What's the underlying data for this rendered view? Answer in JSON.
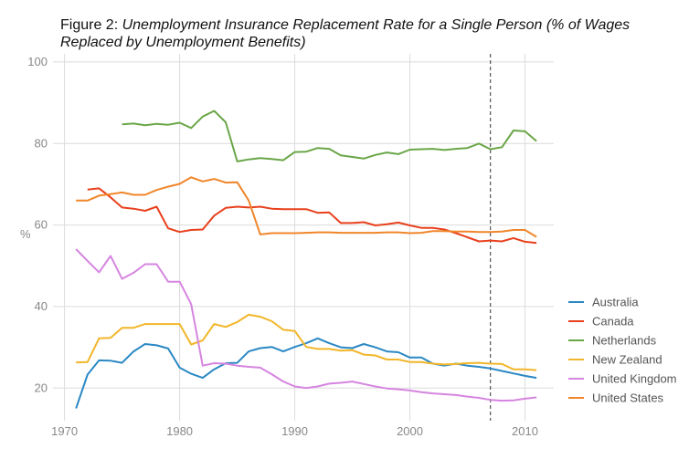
{
  "title": {
    "prefix": "Figure 2: ",
    "main": "Unemployment Insurance Replacement Rate for a Single Person (% of Wages Replaced by Unemployment Benefits)"
  },
  "chart_data": {
    "type": "line",
    "title": "Figure 2: Unemployment Insurance Replacement Rate for a Single Person (% of Wages Replaced by Unemployment Benefits)",
    "xlabel": "",
    "ylabel": "%",
    "xlim": [
      1969,
      2012.5
    ],
    "ylim": [
      12,
      102
    ],
    "xticks": [
      1970,
      1980,
      1990,
      2000,
      2010
    ],
    "yticks": [
      20,
      40,
      60,
      80,
      100
    ],
    "grid": true,
    "legend_position": "bottom-right",
    "reference_line": {
      "x": 2007,
      "style": "dashed"
    },
    "series": [
      {
        "name": "Australia",
        "color": "#2a88c4",
        "points": [
          [
            1971,
            15
          ],
          [
            1972,
            23.3
          ],
          [
            1973,
            26.8
          ],
          [
            1974,
            26.7
          ],
          [
            1975,
            26.2
          ],
          [
            1976,
            29
          ],
          [
            1977,
            30.8
          ],
          [
            1978,
            30.5
          ],
          [
            1979,
            29.7
          ],
          [
            1980,
            25
          ],
          [
            1981,
            23.5
          ],
          [
            1982,
            22.5
          ],
          [
            1983,
            24.6
          ],
          [
            1984,
            26.1
          ],
          [
            1985,
            26.2
          ],
          [
            1986,
            29
          ],
          [
            1987,
            29.8
          ],
          [
            1988,
            30.1
          ],
          [
            1989,
            29
          ],
          [
            1990,
            30.1
          ],
          [
            1991,
            31
          ],
          [
            1992,
            32.2
          ],
          [
            1993,
            31
          ],
          [
            1994,
            30
          ],
          [
            1995,
            29.8
          ],
          [
            1996,
            30.8
          ],
          [
            1997,
            30
          ],
          [
            1998,
            29
          ],
          [
            1999,
            28.8
          ],
          [
            2000,
            27.5
          ],
          [
            2001,
            27.5
          ],
          [
            2002,
            26
          ],
          [
            2003,
            25.5
          ],
          [
            2004,
            26
          ],
          [
            2005,
            25.5
          ],
          [
            2006,
            25.2
          ],
          [
            2007,
            24.8
          ],
          [
            2008,
            24.2
          ],
          [
            2009,
            23.6
          ],
          [
            2010,
            23
          ],
          [
            2011,
            22.5
          ]
        ]
      },
      {
        "name": "Canada",
        "color": "#e8401c",
        "points": [
          [
            1972,
            68.7
          ],
          [
            1973,
            69
          ],
          [
            1974,
            66.8
          ],
          [
            1975,
            64.3
          ],
          [
            1976,
            64
          ],
          [
            1977,
            63.5
          ],
          [
            1978,
            64.5
          ],
          [
            1979,
            59.2
          ],
          [
            1980,
            58.3
          ],
          [
            1981,
            58.8
          ],
          [
            1982,
            58.9
          ],
          [
            1983,
            62.3
          ],
          [
            1984,
            64.2
          ],
          [
            1985,
            64.5
          ],
          [
            1986,
            64.3
          ],
          [
            1987,
            64.5
          ],
          [
            1988,
            64
          ],
          [
            1989,
            63.9
          ],
          [
            1990,
            63.9
          ],
          [
            1991,
            63.9
          ],
          [
            1992,
            63
          ],
          [
            1993,
            63.1
          ],
          [
            1994,
            60.5
          ],
          [
            1995,
            60.5
          ],
          [
            1996,
            60.7
          ],
          [
            1997,
            59.9
          ],
          [
            1998,
            60.2
          ],
          [
            1999,
            60.6
          ],
          [
            2000,
            59.9
          ],
          [
            2001,
            59.3
          ],
          [
            2002,
            59.3
          ],
          [
            2003,
            58.9
          ],
          [
            2004,
            58
          ],
          [
            2005,
            57
          ],
          [
            2006,
            56
          ],
          [
            2007,
            56.2
          ],
          [
            2008,
            56
          ],
          [
            2009,
            56.8
          ],
          [
            2010,
            55.9
          ],
          [
            2011,
            55.6
          ]
        ]
      },
      {
        "name": "Netherlands",
        "color": "#6aa647",
        "points": [
          [
            1975,
            84.7
          ],
          [
            1976,
            84.9
          ],
          [
            1977,
            84.5
          ],
          [
            1978,
            84.8
          ],
          [
            1979,
            84.6
          ],
          [
            1980,
            85.1
          ],
          [
            1981,
            83.8
          ],
          [
            1982,
            86.6
          ],
          [
            1983,
            88
          ],
          [
            1984,
            85.2
          ],
          [
            1985,
            75.6
          ],
          [
            1986,
            76.1
          ],
          [
            1987,
            76.4
          ],
          [
            1988,
            76.2
          ],
          [
            1989,
            75.9
          ],
          [
            1990,
            77.9
          ],
          [
            1991,
            78
          ],
          [
            1992,
            78.9
          ],
          [
            1993,
            78.7
          ],
          [
            1994,
            77.1
          ],
          [
            1995,
            76.7
          ],
          [
            1996,
            76.3
          ],
          [
            1997,
            77.2
          ],
          [
            1998,
            77.8
          ],
          [
            1999,
            77.4
          ],
          [
            2000,
            78.5
          ],
          [
            2001,
            78.6
          ],
          [
            2002,
            78.7
          ],
          [
            2003,
            78.4
          ],
          [
            2004,
            78.7
          ],
          [
            2005,
            78.9
          ],
          [
            2006,
            80
          ],
          [
            2007,
            78.6
          ],
          [
            2008,
            79.1
          ],
          [
            2009,
            83.2
          ],
          [
            2010,
            83
          ],
          [
            2011,
            80.6
          ]
        ]
      },
      {
        "name": "New Zealand",
        "color": "#f2b62a",
        "points": [
          [
            1971,
            26.3
          ],
          [
            1972,
            26.4
          ],
          [
            1973,
            32.2
          ],
          [
            1974,
            32.3
          ],
          [
            1975,
            34.8
          ],
          [
            1976,
            34.8
          ],
          [
            1977,
            35.7
          ],
          [
            1978,
            35.7
          ],
          [
            1979,
            35.7
          ],
          [
            1980,
            35.7
          ],
          [
            1981,
            30.7
          ],
          [
            1982,
            31.7
          ],
          [
            1983,
            35.7
          ],
          [
            1984,
            35
          ],
          [
            1985,
            36.2
          ],
          [
            1986,
            38
          ],
          [
            1987,
            37.5
          ],
          [
            1988,
            36.4
          ],
          [
            1989,
            34.3
          ],
          [
            1990,
            34
          ],
          [
            1991,
            30.1
          ],
          [
            1992,
            29.6
          ],
          [
            1993,
            29.6
          ],
          [
            1994,
            29.2
          ],
          [
            1995,
            29.3
          ],
          [
            1996,
            28.2
          ],
          [
            1997,
            28
          ],
          [
            1998,
            27
          ],
          [
            1999,
            27
          ],
          [
            2000,
            26.4
          ],
          [
            2001,
            26.4
          ],
          [
            2002,
            26
          ],
          [
            2003,
            25.8
          ],
          [
            2004,
            25.9
          ],
          [
            2005,
            26.1
          ],
          [
            2006,
            26.2
          ],
          [
            2007,
            26
          ],
          [
            2008,
            25.9
          ],
          [
            2009,
            24.6
          ],
          [
            2010,
            24.6
          ],
          [
            2011,
            24.4
          ]
        ]
      },
      {
        "name": "United Kingdom",
        "color": "#d685e0",
        "points": [
          [
            1971,
            54.1
          ],
          [
            1972,
            51.2
          ],
          [
            1973,
            48.4
          ],
          [
            1974,
            52.4
          ],
          [
            1975,
            46.8
          ],
          [
            1976,
            48.3
          ],
          [
            1977,
            50.4
          ],
          [
            1978,
            50.4
          ],
          [
            1979,
            46.1
          ],
          [
            1980,
            46.1
          ],
          [
            1981,
            40.6
          ],
          [
            1982,
            25.5
          ],
          [
            1983,
            26.1
          ],
          [
            1984,
            26
          ],
          [
            1985,
            25.5
          ],
          [
            1986,
            25.2
          ],
          [
            1987,
            25
          ],
          [
            1988,
            23.4
          ],
          [
            1989,
            21.6
          ],
          [
            1990,
            20.4
          ],
          [
            1991,
            20
          ],
          [
            1992,
            20.4
          ],
          [
            1993,
            21.1
          ],
          [
            1994,
            21.3
          ],
          [
            1995,
            21.6
          ],
          [
            1996,
            21
          ],
          [
            1997,
            20.4
          ],
          [
            1998,
            19.9
          ],
          [
            1999,
            19.7
          ],
          [
            2000,
            19.4
          ],
          [
            2001,
            19
          ],
          [
            2002,
            18.7
          ],
          [
            2003,
            18.5
          ],
          [
            2004,
            18.3
          ],
          [
            2005,
            17.9
          ],
          [
            2006,
            17.6
          ],
          [
            2007,
            17.1
          ],
          [
            2008,
            16.9
          ],
          [
            2009,
            17
          ],
          [
            2010,
            17.4
          ],
          [
            2011,
            17.7
          ]
        ]
      },
      {
        "name": "United States",
        "color": "#f0862a",
        "points": [
          [
            1971,
            66
          ],
          [
            1972,
            66
          ],
          [
            1973,
            67.2
          ],
          [
            1974,
            67.6
          ],
          [
            1975,
            68
          ],
          [
            1976,
            67.4
          ],
          [
            1977,
            67.4
          ],
          [
            1978,
            68.6
          ],
          [
            1979,
            69.4
          ],
          [
            1980,
            70.1
          ],
          [
            1981,
            71.7
          ],
          [
            1982,
            70.7
          ],
          [
            1983,
            71.3
          ],
          [
            1984,
            70.4
          ],
          [
            1985,
            70.5
          ],
          [
            1986,
            66
          ],
          [
            1987,
            57.7
          ],
          [
            1988,
            58
          ],
          [
            1989,
            58
          ],
          [
            1990,
            58
          ],
          [
            1991,
            58.1
          ],
          [
            1992,
            58.2
          ],
          [
            1993,
            58.2
          ],
          [
            1994,
            58.1
          ],
          [
            1995,
            58.1
          ],
          [
            1996,
            58.1
          ],
          [
            1997,
            58.1
          ],
          [
            1998,
            58.2
          ],
          [
            1999,
            58.2
          ],
          [
            2000,
            58
          ],
          [
            2001,
            58.1
          ],
          [
            2002,
            58.5
          ],
          [
            2003,
            58.5
          ],
          [
            2004,
            58.4
          ],
          [
            2005,
            58.4
          ],
          [
            2006,
            58.3
          ],
          [
            2007,
            58.3
          ],
          [
            2008,
            58.4
          ],
          [
            2009,
            58.8
          ],
          [
            2010,
            58.8
          ],
          [
            2011,
            57.1
          ]
        ]
      }
    ]
  }
}
